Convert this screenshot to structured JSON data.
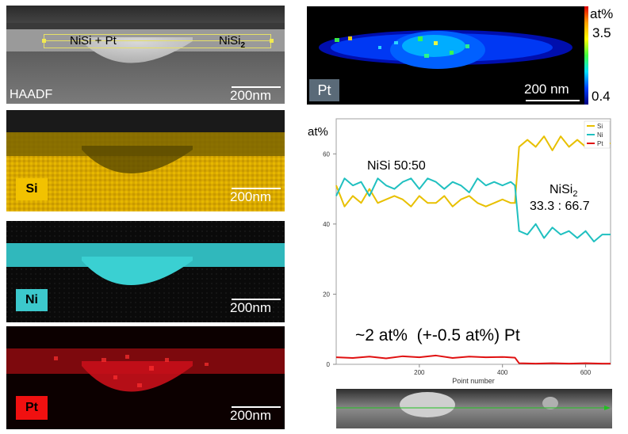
{
  "haadf": {
    "corner_label": "HAADF",
    "phase_left": "NiSi + Pt",
    "phase_right": "NiSi",
    "phase_right_sub": "2",
    "scale": "200nm"
  },
  "maps": [
    {
      "element": "Si",
      "scale": "200nm",
      "color": "#e8b800",
      "chip_bg": "#f2c200",
      "chip_fg": "#000000"
    },
    {
      "element": "Ni",
      "scale": "200nm",
      "color": "#3ad0d2",
      "chip_bg": "#3cc8cc",
      "chip_fg": "#000000"
    },
    {
      "element": "Pt",
      "scale": "200nm",
      "color": "#e0101a",
      "chip_bg": "#f01010",
      "chip_fg": "#000000"
    }
  ],
  "pt_map": {
    "label": "Pt",
    "scale": "200 nm",
    "colorbar_unit": "at%",
    "colorbar_max": "3.5",
    "colorbar_min": "0.4"
  },
  "chart_data": {
    "type": "line",
    "ylabel": "at%",
    "xlabel": "Point number",
    "xlim": [
      0,
      660
    ],
    "ylim": [
      0,
      70
    ],
    "x_ticks": [
      200,
      400,
      600
    ],
    "y_ticks": [
      0,
      20,
      40,
      60
    ],
    "legend_placement": "top-right",
    "legend": [
      "Si",
      "Ni",
      "Pt"
    ],
    "annotations": {
      "left_phase": "NiSi 50:50",
      "right_phase_name": "NiSi",
      "right_phase_sub": "2",
      "right_phase_ratio": "33.3 : 66.7",
      "pt_note": "~2 at%  (+-0.5 at%) Pt"
    },
    "series": [
      {
        "name": "Si",
        "color": "#e8c000",
        "x": [
          0,
          20,
          40,
          60,
          80,
          100,
          120,
          140,
          160,
          180,
          200,
          220,
          240,
          260,
          280,
          300,
          320,
          340,
          360,
          380,
          400,
          420,
          430,
          440,
          460,
          480,
          500,
          520,
          540,
          560,
          580,
          600,
          620,
          640,
          660
        ],
        "y": [
          51,
          45,
          48,
          46,
          50,
          46,
          47,
          48,
          47,
          45,
          48,
          46,
          46,
          48,
          45,
          47,
          48,
          46,
          45,
          46,
          47,
          46,
          46,
          62,
          64,
          62,
          65,
          61,
          65,
          62,
          64,
          62,
          65,
          63,
          63
        ]
      },
      {
        "name": "Ni",
        "color": "#20c0c0",
        "x": [
          0,
          20,
          40,
          60,
          80,
          100,
          120,
          140,
          160,
          180,
          200,
          220,
          240,
          260,
          280,
          300,
          320,
          340,
          360,
          380,
          400,
          420,
          430,
          440,
          460,
          480,
          500,
          520,
          540,
          560,
          580,
          600,
          620,
          640,
          660
        ],
        "y": [
          48,
          53,
          51,
          52,
          48,
          53,
          51,
          50,
          52,
          53,
          50,
          53,
          52,
          50,
          52,
          51,
          49,
          53,
          51,
          52,
          51,
          52,
          51,
          38,
          37,
          40,
          36,
          39,
          37,
          38,
          36,
          38,
          35,
          37,
          37
        ]
      },
      {
        "name": "Pt",
        "color": "#e01010",
        "x": [
          0,
          40,
          80,
          120,
          160,
          200,
          240,
          280,
          320,
          360,
          400,
          430,
          440,
          480,
          520,
          560,
          600,
          640,
          660
        ],
        "y": [
          2,
          1.8,
          2.2,
          1.7,
          2.3,
          2,
          2.5,
          1.8,
          2.2,
          2,
          2.1,
          1.9,
          0.3,
          0.2,
          0.3,
          0.2,
          0.3,
          0.2,
          0.2
        ]
      }
    ]
  }
}
